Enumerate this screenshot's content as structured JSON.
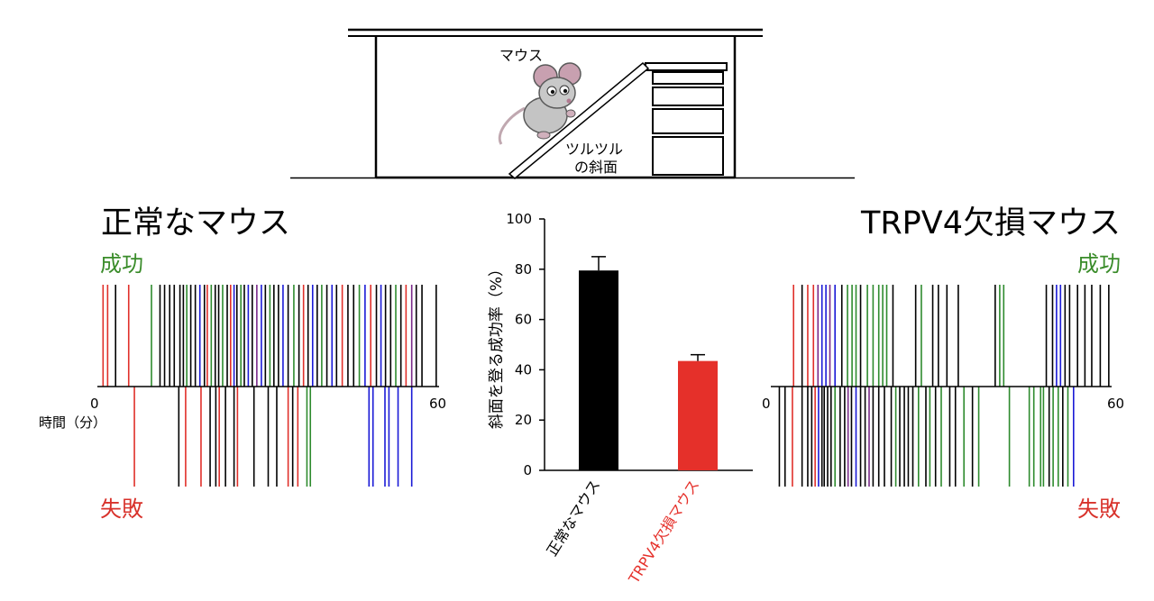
{
  "diagram": {
    "mouse_label": "マウス",
    "slope_label_line1": "ツルツル",
    "slope_label_line2": "の斜面"
  },
  "left_panel": {
    "title": "正常なマウス",
    "success_label": "成功",
    "failure_label": "失敗",
    "axis_start": "0",
    "axis_end": "60",
    "axis_unit": "時間（分）"
  },
  "right_panel": {
    "title": "TRPV4欠損マウス",
    "success_label": "成功",
    "failure_label": "失敗",
    "axis_start": "0",
    "axis_end": "60"
  },
  "colors": {
    "black": "#000000",
    "red": "#e0302a",
    "green": "#2e8b2e",
    "blue": "#1a1ad6",
    "purple": "#7a2a8a",
    "success_text": "#3a8c2a",
    "failure_text": "#d8322b",
    "bar_normal": "#000000",
    "bar_trpv4": "#e5302a"
  },
  "chart_data": [
    {
      "type": "bar",
      "categories": [
        "正常なマウス",
        "TRPV4欠損マウス"
      ],
      "values": [
        79.5,
        43.5
      ],
      "errors": [
        5.5,
        2.5
      ],
      "ylabel": "斜面を登る成功率（%）",
      "ylim": [
        0,
        100
      ],
      "yticks": [
        "0",
        "20",
        "40",
        "60",
        "80",
        "100"
      ],
      "grid": false
    },
    {
      "type": "scatter",
      "xlim": [
        0,
        60
      ],
      "success": [
        {
          "t": 1.0,
          "c": "red"
        },
        {
          "t": 1.8,
          "c": "red"
        },
        {
          "t": 3.2,
          "c": "black"
        },
        {
          "t": 5.5,
          "c": "red"
        },
        {
          "t": 9.5,
          "c": "green"
        },
        {
          "t": 11.0,
          "c": "black"
        },
        {
          "t": 11.8,
          "c": "black"
        },
        {
          "t": 12.7,
          "c": "black"
        },
        {
          "t": 13.5,
          "c": "black"
        },
        {
          "t": 14.5,
          "c": "black"
        },
        {
          "t": 15.1,
          "c": "black"
        },
        {
          "t": 15.7,
          "c": "green"
        },
        {
          "t": 16.4,
          "c": "black"
        },
        {
          "t": 17.2,
          "c": "black"
        },
        {
          "t": 18.0,
          "c": "blue"
        },
        {
          "t": 18.8,
          "c": "black"
        },
        {
          "t": 19.3,
          "c": "red"
        },
        {
          "t": 20.0,
          "c": "green"
        },
        {
          "t": 20.7,
          "c": "black"
        },
        {
          "t": 21.3,
          "c": "black"
        },
        {
          "t": 22.0,
          "c": "green"
        },
        {
          "t": 22.8,
          "c": "black"
        },
        {
          "t": 23.4,
          "c": "red"
        },
        {
          "t": 24.0,
          "c": "blue"
        },
        {
          "t": 24.5,
          "c": "black"
        },
        {
          "t": 25.2,
          "c": "green"
        },
        {
          "t": 25.8,
          "c": "black"
        },
        {
          "t": 26.5,
          "c": "blue"
        },
        {
          "t": 27.2,
          "c": "black"
        },
        {
          "t": 28.0,
          "c": "purple"
        },
        {
          "t": 28.8,
          "c": "blue"
        },
        {
          "t": 29.5,
          "c": "black"
        },
        {
          "t": 30.3,
          "c": "green"
        },
        {
          "t": 31.0,
          "c": "black"
        },
        {
          "t": 31.8,
          "c": "black"
        },
        {
          "t": 32.6,
          "c": "blue"
        },
        {
          "t": 33.5,
          "c": "black"
        },
        {
          "t": 34.5,
          "c": "green"
        },
        {
          "t": 35.4,
          "c": "black"
        },
        {
          "t": 36.2,
          "c": "red"
        },
        {
          "t": 37.0,
          "c": "black"
        },
        {
          "t": 37.8,
          "c": "blue"
        },
        {
          "t": 38.6,
          "c": "black"
        },
        {
          "t": 39.4,
          "c": "green"
        },
        {
          "t": 40.3,
          "c": "black"
        },
        {
          "t": 41.2,
          "c": "blue"
        },
        {
          "t": 42.0,
          "c": "black"
        },
        {
          "t": 43.0,
          "c": "red"
        },
        {
          "t": 44.0,
          "c": "black"
        },
        {
          "t": 45.0,
          "c": "black"
        },
        {
          "t": 46.0,
          "c": "green"
        },
        {
          "t": 47.0,
          "c": "blue"
        },
        {
          "t": 48.0,
          "c": "red"
        },
        {
          "t": 49.0,
          "c": "black"
        },
        {
          "t": 49.8,
          "c": "blue"
        },
        {
          "t": 50.6,
          "c": "black"
        },
        {
          "t": 51.5,
          "c": "black"
        },
        {
          "t": 52.4,
          "c": "green"
        },
        {
          "t": 53.3,
          "c": "black"
        },
        {
          "t": 54.2,
          "c": "red"
        },
        {
          "t": 55.2,
          "c": "purple"
        },
        {
          "t": 56.0,
          "c": "black"
        },
        {
          "t": 57.0,
          "c": "black"
        },
        {
          "t": 59.5,
          "c": "black"
        }
      ],
      "failure": [
        {
          "t": 6.5,
          "c": "red"
        },
        {
          "t": 14.3,
          "c": "black"
        },
        {
          "t": 15.5,
          "c": "red"
        },
        {
          "t": 18.2,
          "c": "red"
        },
        {
          "t": 19.8,
          "c": "black"
        },
        {
          "t": 20.8,
          "c": "black"
        },
        {
          "t": 21.4,
          "c": "red"
        },
        {
          "t": 22.5,
          "c": "black"
        },
        {
          "t": 24.0,
          "c": "black"
        },
        {
          "t": 24.6,
          "c": "red"
        },
        {
          "t": 27.5,
          "c": "black"
        },
        {
          "t": 30.0,
          "c": "black"
        },
        {
          "t": 31.5,
          "c": "black"
        },
        {
          "t": 33.5,
          "c": "red"
        },
        {
          "t": 34.3,
          "c": "black"
        },
        {
          "t": 35.2,
          "c": "red"
        },
        {
          "t": 36.8,
          "c": "green"
        },
        {
          "t": 37.4,
          "c": "green"
        },
        {
          "t": 47.7,
          "c": "blue"
        },
        {
          "t": 48.4,
          "c": "blue"
        },
        {
          "t": 50.5,
          "c": "blue"
        },
        {
          "t": 51.2,
          "c": "blue"
        },
        {
          "t": 52.8,
          "c": "blue"
        },
        {
          "t": 55.2,
          "c": "blue"
        }
      ]
    },
    {
      "type": "scatter",
      "xlim": [
        0,
        60
      ],
      "success": [
        {
          "t": 4.0,
          "c": "red"
        },
        {
          "t": 5.5,
          "c": "black"
        },
        {
          "t": 6.5,
          "c": "red"
        },
        {
          "t": 7.5,
          "c": "red"
        },
        {
          "t": 8.3,
          "c": "purple"
        },
        {
          "t": 9.0,
          "c": "blue"
        },
        {
          "t": 9.7,
          "c": "blue"
        },
        {
          "t": 10.4,
          "c": "purple"
        },
        {
          "t": 11.3,
          "c": "blue"
        },
        {
          "t": 12.5,
          "c": "black"
        },
        {
          "t": 13.5,
          "c": "green"
        },
        {
          "t": 14.3,
          "c": "green"
        },
        {
          "t": 15.0,
          "c": "green"
        },
        {
          "t": 15.8,
          "c": "black"
        },
        {
          "t": 17.0,
          "c": "green"
        },
        {
          "t": 18.0,
          "c": "green"
        },
        {
          "t": 19.0,
          "c": "green"
        },
        {
          "t": 19.7,
          "c": "green"
        },
        {
          "t": 20.4,
          "c": "green"
        },
        {
          "t": 21.5,
          "c": "black"
        },
        {
          "t": 25.5,
          "c": "black"
        },
        {
          "t": 26.5,
          "c": "green"
        },
        {
          "t": 28.5,
          "c": "black"
        },
        {
          "t": 29.5,
          "c": "black"
        },
        {
          "t": 31.0,
          "c": "black"
        },
        {
          "t": 33.0,
          "c": "black"
        },
        {
          "t": 39.5,
          "c": "black"
        },
        {
          "t": 40.3,
          "c": "green"
        },
        {
          "t": 41.0,
          "c": "green"
        },
        {
          "t": 48.5,
          "c": "black"
        },
        {
          "t": 49.6,
          "c": "black"
        },
        {
          "t": 50.3,
          "c": "blue"
        },
        {
          "t": 51.0,
          "c": "blue"
        },
        {
          "t": 51.8,
          "c": "black"
        },
        {
          "t": 52.6,
          "c": "black"
        },
        {
          "t": 54.0,
          "c": "black"
        },
        {
          "t": 55.3,
          "c": "black"
        },
        {
          "t": 56.5,
          "c": "black"
        },
        {
          "t": 58.0,
          "c": "black"
        },
        {
          "t": 59.5,
          "c": "black"
        }
      ],
      "failure": [
        {
          "t": 1.5,
          "c": "black"
        },
        {
          "t": 2.5,
          "c": "black"
        },
        {
          "t": 3.8,
          "c": "red"
        },
        {
          "t": 5.5,
          "c": "black"
        },
        {
          "t": 6.5,
          "c": "black"
        },
        {
          "t": 7.2,
          "c": "black"
        },
        {
          "t": 7.8,
          "c": "red"
        },
        {
          "t": 8.4,
          "c": "blue"
        },
        {
          "t": 9.0,
          "c": "black"
        },
        {
          "t": 9.4,
          "c": "black"
        },
        {
          "t": 10.0,
          "c": "black"
        },
        {
          "t": 10.6,
          "c": "black"
        },
        {
          "t": 11.3,
          "c": "green"
        },
        {
          "t": 12.2,
          "c": "black"
        },
        {
          "t": 13.0,
          "c": "black"
        },
        {
          "t": 13.6,
          "c": "purple"
        },
        {
          "t": 14.2,
          "c": "black"
        },
        {
          "t": 15.0,
          "c": "blue"
        },
        {
          "t": 15.8,
          "c": "black"
        },
        {
          "t": 16.6,
          "c": "black"
        },
        {
          "t": 17.3,
          "c": "purple"
        },
        {
          "t": 18.0,
          "c": "black"
        },
        {
          "t": 19.0,
          "c": "black"
        },
        {
          "t": 20.0,
          "c": "black"
        },
        {
          "t": 21.2,
          "c": "black"
        },
        {
          "t": 22.0,
          "c": "green"
        },
        {
          "t": 22.7,
          "c": "black"
        },
        {
          "t": 23.5,
          "c": "black"
        },
        {
          "t": 24.2,
          "c": "black"
        },
        {
          "t": 25.0,
          "c": "black"
        },
        {
          "t": 26.0,
          "c": "green"
        },
        {
          "t": 27.3,
          "c": "black"
        },
        {
          "t": 28.0,
          "c": "green"
        },
        {
          "t": 29.0,
          "c": "black"
        },
        {
          "t": 30.0,
          "c": "green"
        },
        {
          "t": 31.5,
          "c": "black"
        },
        {
          "t": 32.5,
          "c": "black"
        },
        {
          "t": 34.0,
          "c": "green"
        },
        {
          "t": 35.5,
          "c": "black"
        },
        {
          "t": 36.6,
          "c": "green"
        },
        {
          "t": 42.0,
          "c": "green"
        },
        {
          "t": 45.5,
          "c": "green"
        },
        {
          "t": 46.3,
          "c": "green"
        },
        {
          "t": 47.5,
          "c": "green"
        },
        {
          "t": 48.0,
          "c": "green"
        },
        {
          "t": 49.0,
          "c": "black"
        },
        {
          "t": 49.7,
          "c": "green"
        },
        {
          "t": 50.6,
          "c": "green"
        },
        {
          "t": 51.4,
          "c": "black"
        },
        {
          "t": 52.3,
          "c": "green"
        },
        {
          "t": 53.3,
          "c": "blue"
        }
      ]
    }
  ]
}
